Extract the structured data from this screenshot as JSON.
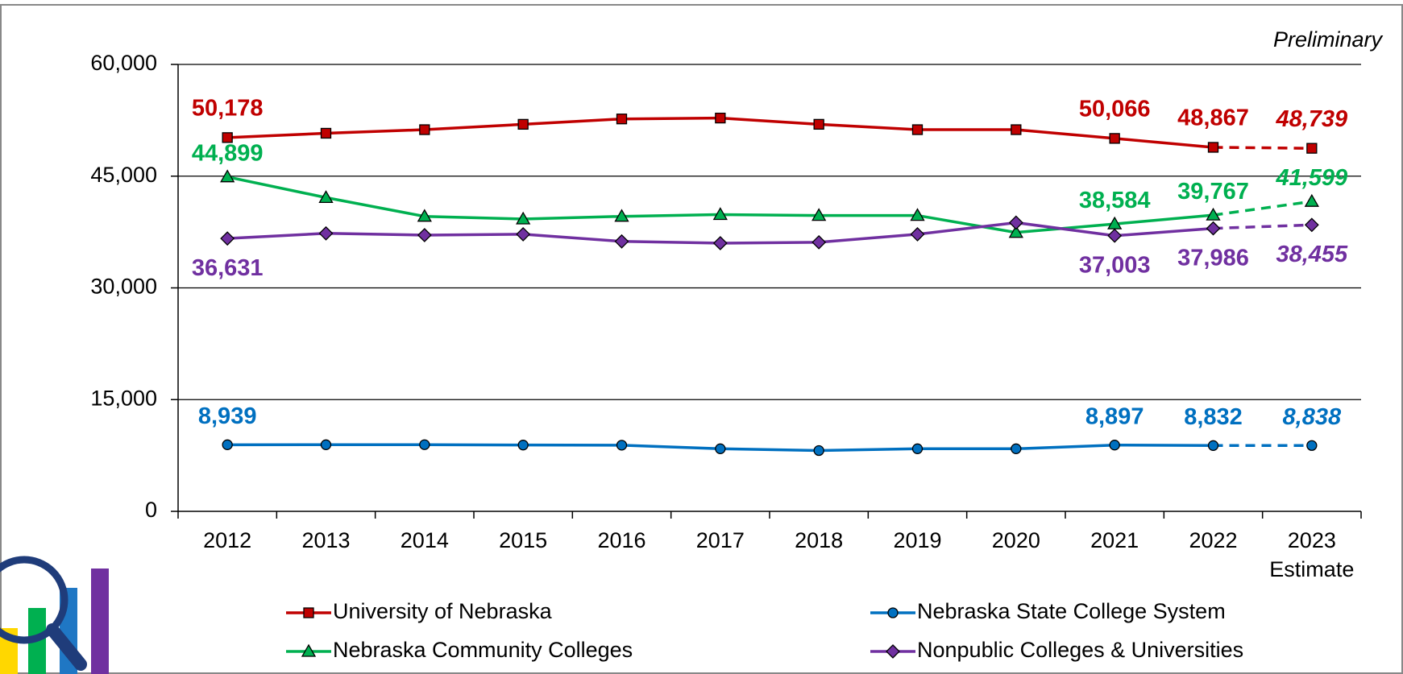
{
  "chart_data": {
    "type": "line",
    "annotation": "Preliminary",
    "categories": [
      "2012",
      "2013",
      "2014",
      "2015",
      "2016",
      "2017",
      "2018",
      "2019",
      "2020",
      "2021",
      "2022",
      "2023"
    ],
    "last_category_note": "Estimate",
    "ylim": [
      0,
      60000
    ],
    "yticks": [
      0,
      {
        "value": 15000,
        "label": "15,000"
      },
      {
        "value": 30000,
        "label": "30,000"
      },
      {
        "value": 45000,
        "label": "45,000"
      },
      {
        "value": 60000,
        "label": "60,000"
      }
    ],
    "grid": true,
    "legend": "bottom",
    "last_segment_dashed": true,
    "series": [
      {
        "name": "University of Nebraska",
        "color": "#c00000",
        "marker": "square",
        "values": [
          50178,
          50760,
          51240,
          51960,
          52680,
          52800,
          51960,
          51240,
          51240,
          50066,
          48867,
          48739
        ],
        "value_labels": [
          "50,178",
          null,
          null,
          null,
          null,
          null,
          null,
          null,
          null,
          "50,066",
          "48,867",
          "48,739"
        ]
      },
      {
        "name": "Nebraska State College System",
        "color": "#0070c0",
        "marker": "circle",
        "values": [
          8939,
          8940,
          8950,
          8900,
          8880,
          8400,
          8160,
          8400,
          8400,
          8897,
          8832,
          8838
        ],
        "value_labels": [
          "8,939",
          null,
          null,
          null,
          null,
          null,
          null,
          null,
          null,
          "8,897",
          "8,832",
          "8,838"
        ]
      },
      {
        "name": "Nebraska Community Colleges",
        "color": "#00b050",
        "marker": "triangle",
        "values": [
          44899,
          42120,
          39600,
          39240,
          39600,
          39840,
          39720,
          39720,
          37440,
          38584,
          39767,
          41599
        ],
        "value_labels": [
          "44,899",
          null,
          null,
          null,
          null,
          null,
          null,
          null,
          null,
          "38,584",
          "39,767",
          "41,599"
        ]
      },
      {
        "name": "Nonpublic Colleges & Universities",
        "color": "#7030a0",
        "marker": "diamond",
        "values": [
          36631,
          37320,
          37080,
          37200,
          36240,
          36000,
          36120,
          37200,
          38760,
          37003,
          37986,
          38455
        ],
        "value_labels": [
          "36,631",
          null,
          null,
          null,
          null,
          null,
          null,
          null,
          null,
          "37,003",
          "37,986",
          "38,455"
        ]
      }
    ]
  }
}
